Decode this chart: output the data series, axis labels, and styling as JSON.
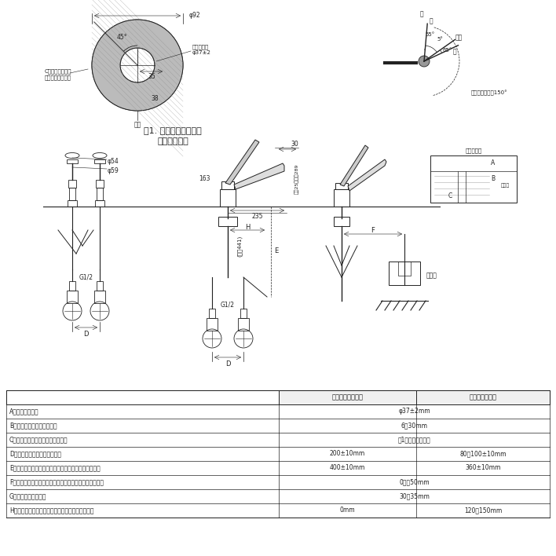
{
  "bg_color": "#ffffff",
  "line_color": "#222222",
  "table_header_col2": "中心振分けの場合",
  "table_header_col3": "片側偏芯の場合",
  "table_rows": [
    [
      "A：取付可能穴径",
      "φ37±2mm",
      ""
    ],
    [
      "B：取付可能カウンター厚さ",
      "6～30mm",
      ""
    ],
    [
      "C：裏面取付作業必要スペース寸法",
      "図1に示す範囲以内",
      ""
    ],
    [
      "D：給水・給湯止水栓芯々寸法",
      "200±10mm",
      "80～100±10mm"
    ],
    [
      "E：水栓取付面から給水・給湯用止水栓中心までの寸法",
      "400±10mm",
      "360±10mm"
    ],
    [
      "F：水栓中心から給水・給湯の止水栓接続中心までの寸法",
      "0～－50mm",
      ""
    ],
    [
      "G：止水栓の標準寸法",
      "30～35mm",
      ""
    ],
    [
      "H：水栓中心から給水・給湯芯々の中心までの寸法",
      "0mm",
      "120～150mm"
    ]
  ]
}
